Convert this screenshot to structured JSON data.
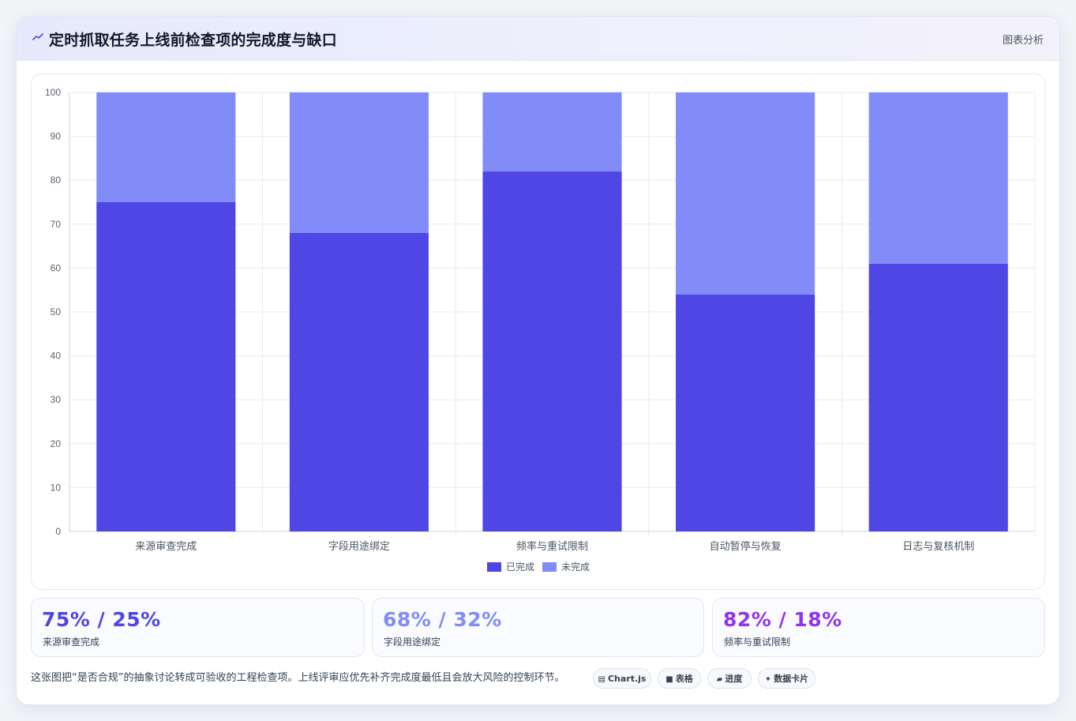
{
  "header": {
    "title": "定时抓取任务上线前检查项的完成度与缺口",
    "action_label": "图表分析"
  },
  "colors": {
    "completed": "#4f46e5",
    "remaining": "#818cf8",
    "accent_1": "#4f46e5",
    "accent_2": "#818cf8",
    "accent_3": "#9333ea"
  },
  "chart_data": {
    "type": "bar",
    "stacked": true,
    "categories": [
      "来源审查完成",
      "字段用途绑定",
      "频率与重试限制",
      "自动暂停与恢复",
      "日志与复核机制"
    ],
    "series": [
      {
        "name": "已完成",
        "values": [
          75,
          68,
          82,
          54,
          61
        ]
      },
      {
        "name": "未完成",
        "values": [
          25,
          32,
          18,
          46,
          39
        ]
      }
    ],
    "ylim": [
      0,
      100
    ],
    "yticks": [
      "0",
      "10",
      "20",
      "30",
      "40",
      "50",
      "60",
      "70",
      "80",
      "90",
      "100"
    ],
    "grid": true,
    "legend_position": "bottom"
  },
  "stats": [
    {
      "value": "75% / 25%",
      "label": "来源审查完成"
    },
    {
      "value": "68% / 32%",
      "label": "字段用途绑定"
    },
    {
      "value": "82% / 18%",
      "label": "频率与重试限制"
    }
  ],
  "footer": {
    "note": "这张图把“是否合规”的抽象讨论转成可验收的工程检查项。上线评审应优先补齐完成度最低且会放大风险的控制环节。",
    "chips": [
      {
        "icon": "chart-glyph-icon",
        "glyph": "▤",
        "label": "Chart.js"
      },
      {
        "icon": "table-glyph-icon",
        "glyph": "■",
        "label": "表格"
      },
      {
        "icon": "progress-glyph-icon",
        "glyph": "▰",
        "label": "进度"
      },
      {
        "icon": "card-glyph-icon",
        "glyph": "✦",
        "label": "数据卡片"
      }
    ]
  }
}
